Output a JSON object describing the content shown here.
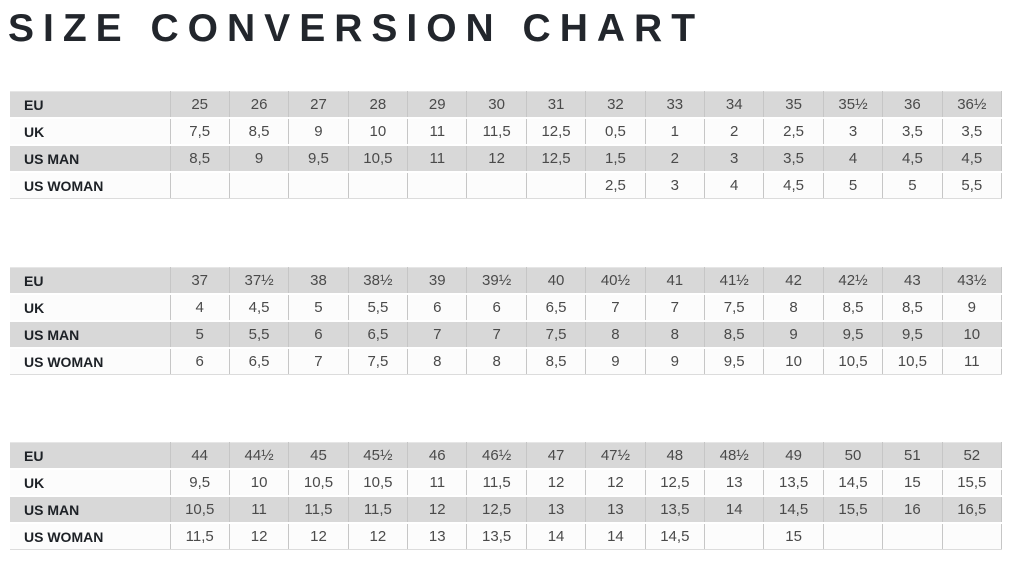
{
  "page": {
    "title": "SIZE CONVERSION CHART"
  },
  "colors": {
    "title_text": "#22262c",
    "label_text": "#1d2126",
    "value_text": "#4a4a4a",
    "row_shaded": "#d8d8d8",
    "row_light": "#fcfcfc",
    "grid_line": "#c6c6c6"
  },
  "tables": [
    {
      "name": "sizes-25-to-36half",
      "rows": [
        {
          "label": "EU",
          "values": [
            "25",
            "26",
            "27",
            "28",
            "29",
            "30",
            "31",
            "32",
            "33",
            "34",
            "35",
            "35½",
            "36",
            "36½"
          ]
        },
        {
          "label": "UK",
          "values": [
            "7,5",
            "8,5",
            "9",
            "10",
            "11",
            "11,5",
            "12,5",
            "0,5",
            "1",
            "2",
            "2,5",
            "3",
            "3,5",
            "3,5"
          ]
        },
        {
          "label": "US MAN",
          "values": [
            "8,5",
            "9",
            "9,5",
            "10,5",
            "11",
            "12",
            "12,5",
            "1,5",
            "2",
            "3",
            "3,5",
            "4",
            "4,5",
            "4,5"
          ]
        },
        {
          "label": "US WOMAN",
          "values": [
            "",
            "",
            "",
            "",
            "",
            "",
            "",
            "2,5",
            "3",
            "4",
            "4,5",
            "5",
            "5",
            "5,5"
          ]
        }
      ]
    },
    {
      "name": "sizes-37-to-43half",
      "rows": [
        {
          "label": "EU",
          "values": [
            "37",
            "37½",
            "38",
            "38½",
            "39",
            "39½",
            "40",
            "40½",
            "41",
            "41½",
            "42",
            "42½",
            "43",
            "43½"
          ]
        },
        {
          "label": "UK",
          "values": [
            "4",
            "4,5",
            "5",
            "5,5",
            "6",
            "6",
            "6,5",
            "7",
            "7",
            "7,5",
            "8",
            "8,5",
            "8,5",
            "9"
          ]
        },
        {
          "label": "US MAN",
          "values": [
            "5",
            "5,5",
            "6",
            "6,5",
            "7",
            "7",
            "7,5",
            "8",
            "8",
            "8,5",
            "9",
            "9,5",
            "9,5",
            "10"
          ]
        },
        {
          "label": "US WOMAN",
          "values": [
            "6",
            "6,5",
            "7",
            "7,5",
            "8",
            "8",
            "8,5",
            "9",
            "9",
            "9,5",
            "10",
            "10,5",
            "10,5",
            "11"
          ]
        }
      ]
    },
    {
      "name": "sizes-44-to-52",
      "rows": [
        {
          "label": "EU",
          "values": [
            "44",
            "44½",
            "45",
            "45½",
            "46",
            "46½",
            "47",
            "47½",
            "48",
            "48½",
            "49",
            "50",
            "51",
            "52"
          ]
        },
        {
          "label": "UK",
          "values": [
            "9,5",
            "10",
            "10,5",
            "10,5",
            "11",
            "11,5",
            "12",
            "12",
            "12,5",
            "13",
            "13,5",
            "14,5",
            "15",
            "15,5"
          ]
        },
        {
          "label": "US MAN",
          "values": [
            "10,5",
            "11",
            "11,5",
            "11,5",
            "12",
            "12,5",
            "13",
            "13",
            "13,5",
            "14",
            "14,5",
            "15,5",
            "16",
            "16,5"
          ]
        },
        {
          "label": "US WOMAN",
          "values": [
            "11,5",
            "12",
            "12",
            "12",
            "13",
            "13,5",
            "14",
            "14",
            "14,5",
            "",
            "15",
            "",
            "",
            ""
          ]
        }
      ]
    }
  ]
}
